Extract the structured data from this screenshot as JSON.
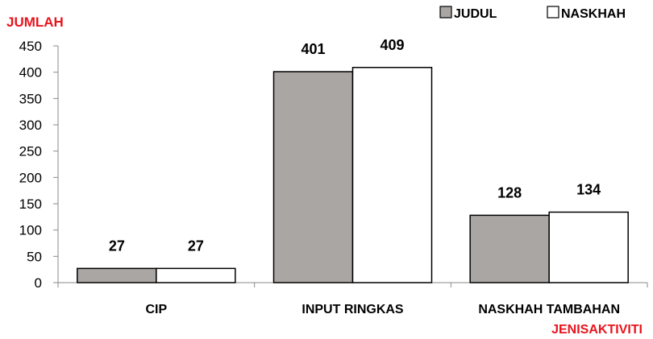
{
  "chart_data": {
    "type": "bar",
    "ylabel": "JUMLAH",
    "xlabel": "JENISAKTIVITI",
    "categories": [
      "CIP",
      "INPUT RINGKAS",
      "NASKHAH TAMBAHAN"
    ],
    "series": [
      {
        "name": "JUDUL",
        "values": [
          27,
          401,
          128
        ],
        "color": "#aaa6a4"
      },
      {
        "name": "NASKHAH",
        "values": [
          27,
          409,
          134
        ],
        "color": "#ffffff"
      }
    ],
    "ylim": [
      0,
      450
    ],
    "yticks": [
      0,
      50,
      100,
      150,
      200,
      250,
      300,
      350,
      400,
      450
    ],
    "legend_position": "top-right",
    "grid": false,
    "axis_label_color": "#e8141c"
  }
}
